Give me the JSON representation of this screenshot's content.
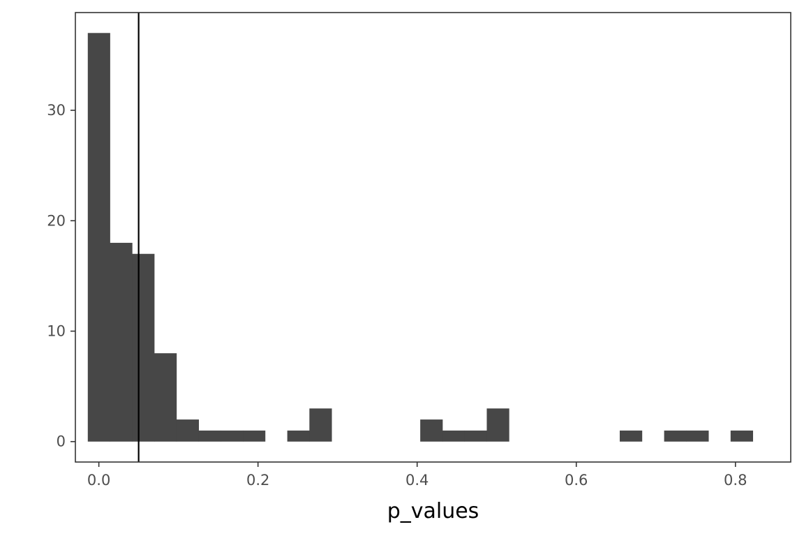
{
  "chart_data": {
    "type": "bar",
    "title": "",
    "xlabel": "p_values",
    "ylabel": "",
    "xlim": [
      -0.0295,
      0.8695
    ],
    "ylim": [
      -1.85,
      38.85
    ],
    "x_ticks": [
      0.0,
      0.2,
      0.4,
      0.6,
      0.8
    ],
    "x_tick_labels": [
      "0.0",
      "0.2",
      "0.4",
      "0.6",
      "0.8"
    ],
    "y_ticks": [
      0,
      10,
      20,
      30
    ],
    "y_tick_labels": [
      "0",
      "10",
      "20",
      "30"
    ],
    "grid": false,
    "reference_line": {
      "x": 0.05
    },
    "bin_width": 0.02786,
    "bins": [
      {
        "start": -0.0139,
        "end": 0.0139,
        "count": 37
      },
      {
        "start": 0.0139,
        "end": 0.0418,
        "count": 18
      },
      {
        "start": 0.0418,
        "end": 0.0696,
        "count": 17
      },
      {
        "start": 0.0696,
        "end": 0.0975,
        "count": 8
      },
      {
        "start": 0.0975,
        "end": 0.1254,
        "count": 2
      },
      {
        "start": 0.1254,
        "end": 0.1532,
        "count": 1
      },
      {
        "start": 0.1532,
        "end": 0.1811,
        "count": 1
      },
      {
        "start": 0.1811,
        "end": 0.2089,
        "count": 1
      },
      {
        "start": 0.2089,
        "end": 0.2368,
        "count": 0
      },
      {
        "start": 0.2368,
        "end": 0.2646,
        "count": 1
      },
      {
        "start": 0.2646,
        "end": 0.2925,
        "count": 3
      },
      {
        "start": 0.2925,
        "end": 0.3204,
        "count": 0
      },
      {
        "start": 0.3204,
        "end": 0.3482,
        "count": 0
      },
      {
        "start": 0.3482,
        "end": 0.3761,
        "count": 0
      },
      {
        "start": 0.3761,
        "end": 0.4039,
        "count": 0
      },
      {
        "start": 0.4039,
        "end": 0.4318,
        "count": 2
      },
      {
        "start": 0.4318,
        "end": 0.4596,
        "count": 1
      },
      {
        "start": 0.4596,
        "end": 0.4875,
        "count": 1
      },
      {
        "start": 0.4875,
        "end": 0.5154,
        "count": 3
      },
      {
        "start": 0.5154,
        "end": 0.5432,
        "count": 0
      },
      {
        "start": 0.5432,
        "end": 0.5711,
        "count": 0
      },
      {
        "start": 0.5711,
        "end": 0.5989,
        "count": 0
      },
      {
        "start": 0.5989,
        "end": 0.6268,
        "count": 0
      },
      {
        "start": 0.6268,
        "end": 0.6546,
        "count": 0
      },
      {
        "start": 0.6546,
        "end": 0.6825,
        "count": 1
      },
      {
        "start": 0.6825,
        "end": 0.7104,
        "count": 0
      },
      {
        "start": 0.7104,
        "end": 0.7382,
        "count": 1
      },
      {
        "start": 0.7382,
        "end": 0.7661,
        "count": 1
      },
      {
        "start": 0.7661,
        "end": 0.7939,
        "count": 0
      },
      {
        "start": 0.7939,
        "end": 0.8218,
        "count": 1
      }
    ],
    "colors": {
      "bar_fill": "#474747",
      "panel_border": "#333333",
      "reference_line": "#000000",
      "background": "#ffffff"
    }
  }
}
